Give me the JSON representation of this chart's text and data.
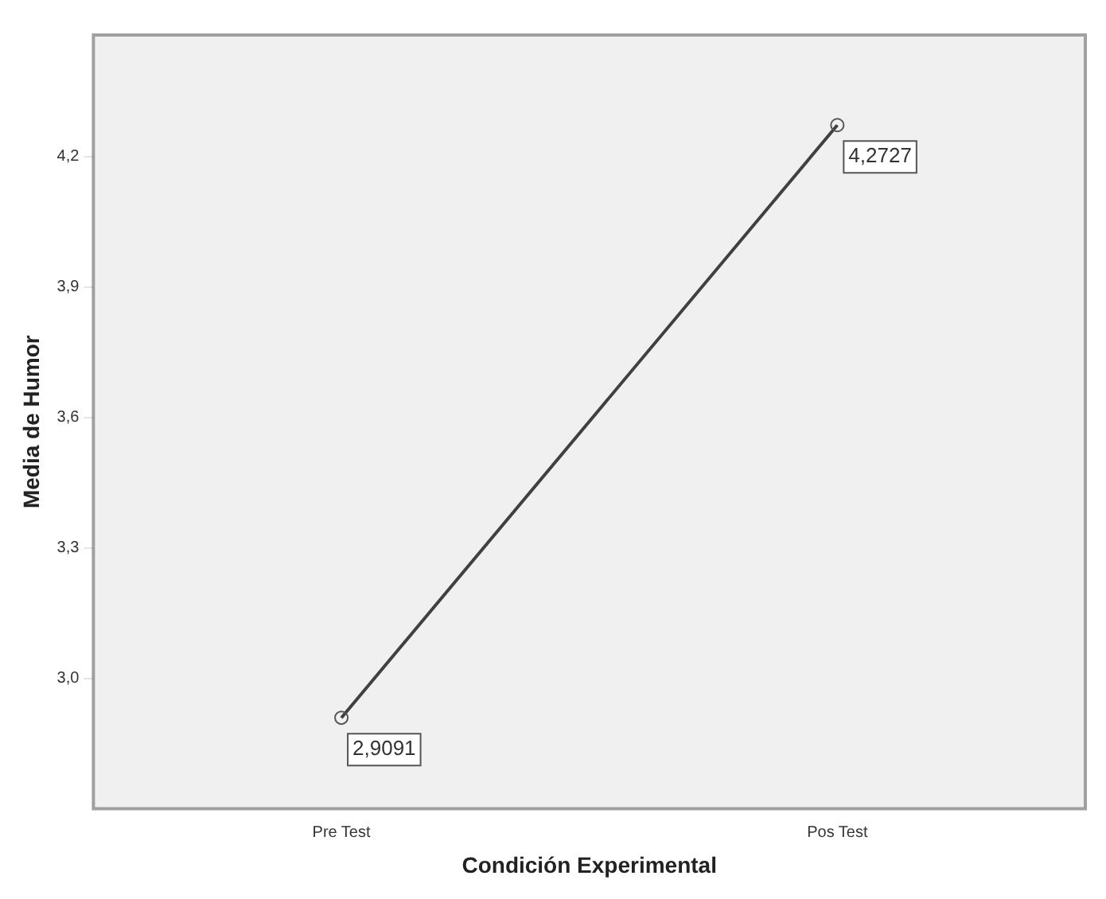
{
  "chart_data": {
    "type": "line",
    "xlabel": "Condición Experimental",
    "ylabel": "Media de Humor",
    "categories": [
      "Pre Test",
      "Pos Test"
    ],
    "series": [
      {
        "color": "#404040",
        "values": [
          2.9091,
          4.2727
        ],
        "value_labels": [
          "2,9091",
          "4,2727"
        ]
      }
    ],
    "ylim": [
      2.7,
      4.48
    ],
    "yticks": [
      {
        "value": 3.0,
        "label": "3,0"
      },
      {
        "value": 3.3,
        "label": "3,3"
      },
      {
        "value": 3.6,
        "label": "3,6"
      },
      {
        "value": 3.9,
        "label": "3,9"
      },
      {
        "value": 4.2,
        "label": "4,2"
      }
    ],
    "grid": false,
    "legend": false,
    "marker": "circle",
    "line_style": "solid"
  }
}
